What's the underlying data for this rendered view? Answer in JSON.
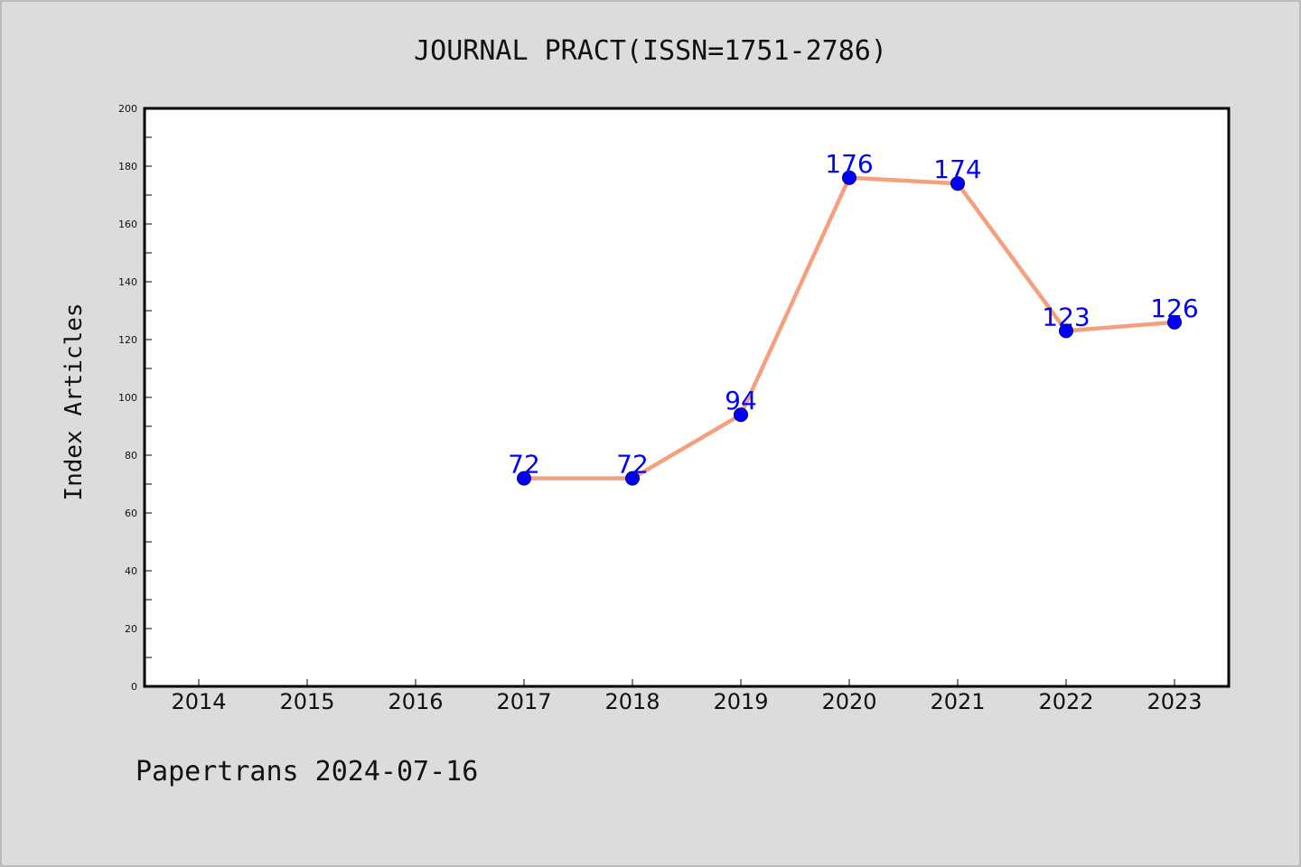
{
  "chart_data": {
    "type": "line",
    "title": "JOURNAL PRACT(ISSN=1751-2786)",
    "ylabel": "Index Articles",
    "xlabel": "",
    "categories": [
      "2014",
      "2015",
      "2016",
      "2017",
      "2018",
      "2019",
      "2020",
      "2021",
      "2022",
      "2023"
    ],
    "series": [
      {
        "x": [
          "2017",
          "2018",
          "2019",
          "2020",
          "2021",
          "2022",
          "2023"
        ],
        "values": [
          72,
          72,
          94,
          176,
          174,
          123,
          126
        ]
      }
    ],
    "ylim": [
      0,
      200
    ],
    "yticks": [
      0,
      20,
      40,
      60,
      80,
      100,
      120,
      140,
      160,
      180,
      200
    ],
    "grid": false,
    "line_color": "#f4a07e",
    "marker_color": "#0000ff",
    "label_color": "#0000ff",
    "footer": "Papertrans 2024-07-16"
  }
}
